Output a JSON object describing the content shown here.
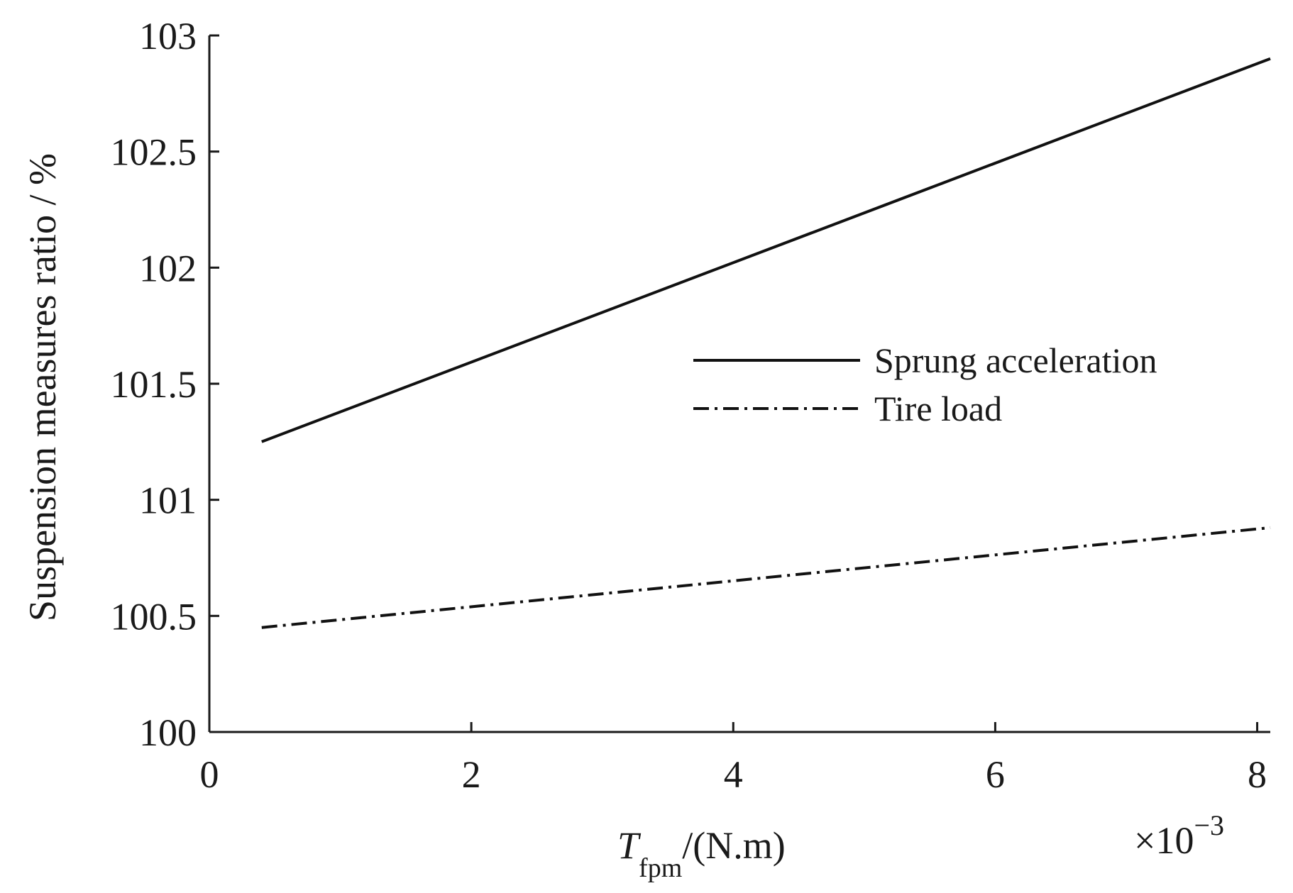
{
  "chart_data": {
    "type": "line",
    "xlabel": {
      "italic": "T",
      "subscript": "fpm",
      "rest": "/(N.m)"
    },
    "x_multiplier": {
      "prefix": "×10",
      "exponent": "−3"
    },
    "ylabel": "Suspension measures ratio / %",
    "xlim": [
      0,
      8.1
    ],
    "ylim": [
      100,
      103
    ],
    "xticks": [
      0,
      2,
      4,
      6,
      8
    ],
    "xtick_labels": [
      "0",
      "2",
      "4",
      "6",
      "8"
    ],
    "yticks": [
      100,
      100.5,
      101,
      101.5,
      102,
      102.5,
      103
    ],
    "ytick_labels": [
      "100",
      "100.5",
      "101",
      "101.5",
      "102",
      "102.5",
      "103"
    ],
    "grid": false,
    "legend_position": "center-right",
    "series": [
      {
        "name": "Sprung acceleration",
        "style": "solid",
        "color": "#111111",
        "x": [
          0.4,
          8.1
        ],
        "y": [
          101.25,
          102.9
        ]
      },
      {
        "name": "Tire load",
        "style": "dash-dot",
        "color": "#111111",
        "x": [
          0.4,
          8.1
        ],
        "y": [
          100.45,
          100.88
        ]
      }
    ]
  }
}
